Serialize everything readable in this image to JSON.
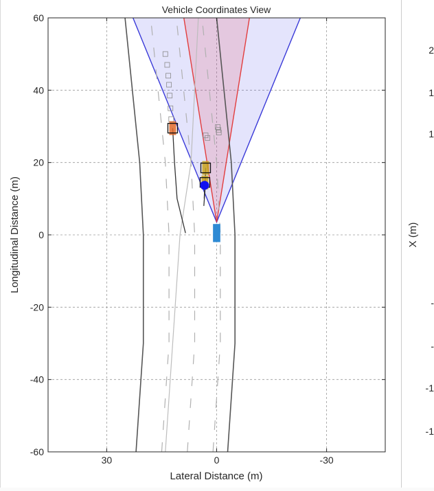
{
  "chart_data": {
    "type": "scatter",
    "title": "Vehicle Coordinates View",
    "xlabel": "Lateral Distance (m)",
    "ylabel": "Longitudinal Distance (m)",
    "xlim": [
      46,
      -46
    ],
    "ylim": [
      -60,
      60
    ],
    "x_direction": "reversed",
    "grid": true,
    "xticks": [
      30,
      0,
      -30
    ],
    "yticks": [
      60,
      40,
      20,
      0,
      -20,
      -40,
      -60
    ],
    "colors": {
      "wide_coverage": "#3a3ad8",
      "narrow_coverage": "#e23d3d",
      "ego": "#2e8ad4",
      "detection": "#1010f0",
      "track_orange": "#e06a2c",
      "track_yellow": "#c8a21c"
    },
    "coverage_areas": [
      {
        "kind": "wide",
        "origin": [
          0,
          3.5
        ],
        "range_m": 62,
        "left_half_angle_deg": 22,
        "right_half_angle_deg": 22
      },
      {
        "kind": "narrow",
        "origin": [
          0,
          3.5
        ],
        "range_m": 62,
        "left_half_angle_deg": 9,
        "right_half_angle_deg": 9
      }
    ],
    "ego_vehicle": {
      "x": 0,
      "y": 0.5,
      "length_m": 5,
      "width_m": 2
    },
    "road_boundaries": [
      [
        [
          22,
          -60
        ],
        [
          20,
          -30
        ],
        [
          20,
          0
        ],
        [
          21,
          20
        ],
        [
          23,
          40
        ],
        [
          25,
          60
        ]
      ],
      [
        [
          -3,
          -60
        ],
        [
          -5,
          -30
        ],
        [
          -5,
          0
        ],
        [
          -4,
          20
        ],
        [
          -2,
          40
        ],
        [
          0,
          60
        ]
      ]
    ],
    "lane_lines": [
      [
        [
          15,
          -60
        ],
        [
          13,
          -30
        ],
        [
          13,
          0
        ],
        [
          14,
          20
        ],
        [
          16,
          40
        ],
        [
          18,
          60
        ]
      ],
      [
        [
          8,
          -60
        ],
        [
          6,
          -30
        ],
        [
          6,
          0
        ],
        [
          7,
          20
        ],
        [
          9,
          40
        ],
        [
          11,
          60
        ]
      ],
      [
        [
          1,
          -60
        ],
        [
          -1,
          -30
        ],
        [
          -1,
          0
        ],
        [
          0,
          20
        ],
        [
          2,
          40
        ],
        [
          4,
          60
        ]
      ]
    ],
    "inner_boundary": [
      [
        14,
        -60
      ],
      [
        12,
        -30
      ],
      [
        10,
        0
      ],
      [
        7,
        20
      ],
      [
        6,
        40
      ],
      [
        5,
        60
      ]
    ],
    "detections": [
      {
        "x": 3.3,
        "y": 13.7
      }
    ],
    "tracks": [
      {
        "x": 12,
        "y": 29.5,
        "color": "orange",
        "history": [
          [
            12,
            29.5
          ],
          [
            11.5,
            20
          ],
          [
            10.8,
            10
          ],
          [
            8.5,
            0.5
          ]
        ]
      },
      {
        "x": 3,
        "y": 18.5,
        "color": "yellow",
        "history": [
          [
            3,
            18.5
          ],
          [
            3.2,
            12
          ],
          [
            3.5,
            8
          ]
        ]
      },
      {
        "x": 3.2,
        "y": 14.5,
        "color": "yellow",
        "history": [
          [
            3.2,
            14.5
          ],
          [
            3.4,
            10
          ]
        ]
      }
    ],
    "history_markers": [
      [
        14,
        50
      ],
      [
        13.5,
        47
      ],
      [
        13.2,
        44
      ],
      [
        13,
        41.5
      ],
      [
        12.8,
        38.5
      ],
      [
        12.6,
        35
      ],
      [
        12.4,
        32
      ],
      [
        3,
        27.5
      ],
      [
        2.5,
        26.8
      ],
      [
        -0.3,
        29.8
      ],
      [
        -0.5,
        29
      ],
      [
        -0.6,
        28.3
      ]
    ]
  },
  "right_panel": {
    "ylabel": "X (m)",
    "tick_fragments": [
      "2",
      "1",
      "1",
      "-",
      "-",
      "-1",
      "-1"
    ]
  }
}
